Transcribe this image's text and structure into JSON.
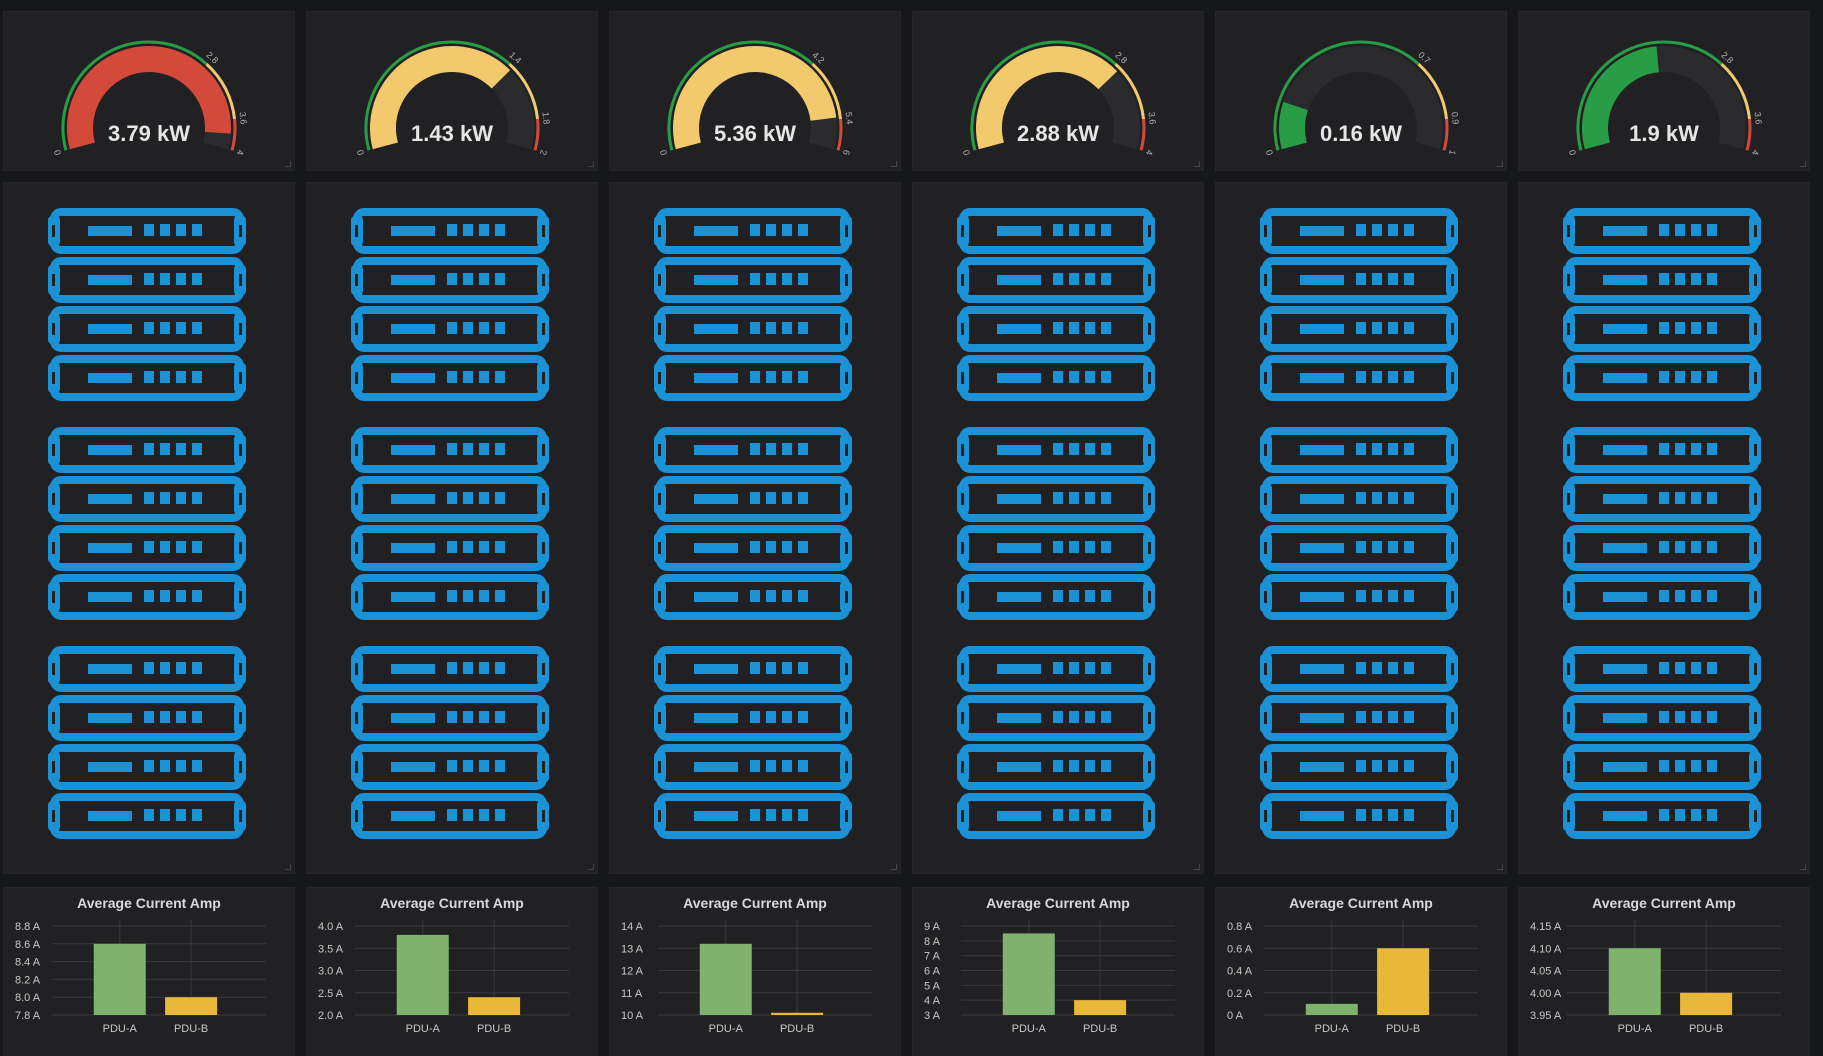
{
  "colors": {
    "background": "#161719",
    "panel": "#212124",
    "green": "#299c46",
    "yellow": "#f2c96d",
    "red": "#d44a3a",
    "server_blue": "#1b91d6",
    "bar_pdu_a": "#7eb26d",
    "bar_pdu_b": "#eab839",
    "grid": "#3a3a3d"
  },
  "icons": {
    "rack": "server-rack-icon"
  },
  "racks": [
    {
      "gauge": {
        "value": 3.79,
        "display": "3.79 kW",
        "min": 0,
        "max": 4,
        "thresholds": [
          2.8,
          3.6
        ],
        "threshold_labels": [
          "2.8",
          "3.6"
        ],
        "min_label": "0",
        "max_label": "4",
        "fill": "#d44a3a"
      },
      "chart": {
        "title": "Average Current Amp",
        "type": "bar",
        "categories": [
          "PDU-A",
          "PDU-B"
        ],
        "values": [
          8.6,
          8.0
        ],
        "ylim": [
          7.8,
          8.8
        ],
        "yticks": [
          "7.8 A",
          "8.0 A",
          "8.2 A",
          "8.4 A",
          "8.6 A",
          "8.8 A"
        ]
      }
    },
    {
      "gauge": {
        "value": 1.43,
        "display": "1.43 kW",
        "min": 0,
        "max": 2,
        "thresholds": [
          1.4,
          1.8
        ],
        "threshold_labels": [
          "1.4",
          "1.8"
        ],
        "min_label": "0",
        "max_label": "2",
        "fill": "#f2c96d"
      },
      "chart": {
        "title": "Average Current Amp",
        "type": "bar",
        "categories": [
          "PDU-A",
          "PDU-B"
        ],
        "values": [
          3.8,
          2.4
        ],
        "ylim": [
          2.0,
          4.0
        ],
        "yticks": [
          "2.0 A",
          "2.5 A",
          "3.0 A",
          "3.5 A",
          "4.0 A"
        ]
      }
    },
    {
      "gauge": {
        "value": 5.36,
        "display": "5.36 kW",
        "min": 0,
        "max": 6,
        "thresholds": [
          4.2,
          5.4
        ],
        "threshold_labels": [
          "4.2",
          "5.4"
        ],
        "min_label": "0",
        "max_label": "6",
        "fill": "#f2c96d"
      },
      "chart": {
        "title": "Average Current Amp",
        "type": "bar",
        "categories": [
          "PDU-A",
          "PDU-B"
        ],
        "values": [
          13.2,
          10.1
        ],
        "ylim": [
          10,
          14
        ],
        "yticks": [
          "10 A",
          "11 A",
          "12 A",
          "13 A",
          "14 A"
        ]
      }
    },
    {
      "gauge": {
        "value": 2.88,
        "display": "2.88 kW",
        "min": 0,
        "max": 4,
        "thresholds": [
          2.8,
          3.6
        ],
        "threshold_labels": [
          "2.8",
          "3.6"
        ],
        "min_label": "0",
        "max_label": "4",
        "fill": "#f2c96d"
      },
      "chart": {
        "title": "Average Current Amp",
        "type": "bar",
        "categories": [
          "PDU-A",
          "PDU-B"
        ],
        "values": [
          8.5,
          4.0
        ],
        "ylim": [
          3,
          9
        ],
        "yticks": [
          "3 A",
          "4 A",
          "5 A",
          "6 A",
          "7 A",
          "8 A",
          "9 A"
        ]
      }
    },
    {
      "gauge": {
        "value": 0.16,
        "display": "0.16 kW",
        "min": 0,
        "max": 1,
        "thresholds": [
          0.7,
          0.9
        ],
        "threshold_labels": [
          "0.7",
          "0.9"
        ],
        "min_label": "0",
        "max_label": "1",
        "fill": "#299c46"
      },
      "chart": {
        "title": "Average Current Amp",
        "type": "bar",
        "categories": [
          "PDU-A",
          "PDU-B"
        ],
        "values": [
          0.1,
          0.6
        ],
        "ylim": [
          0,
          0.8
        ],
        "yticks": [
          "0 A",
          "0.2 A",
          "0.4 A",
          "0.6 A",
          "0.8 A"
        ]
      }
    },
    {
      "gauge": {
        "value": 1.9,
        "display": "1.9 kW",
        "min": 0,
        "max": 4,
        "thresholds": [
          2.8,
          3.6
        ],
        "threshold_labels": [
          "2.8",
          "3.6"
        ],
        "min_label": "0",
        "max_label": "4",
        "fill": "#299c46"
      },
      "chart": {
        "title": "Average Current Amp",
        "type": "bar",
        "categories": [
          "PDU-A",
          "PDU-B"
        ],
        "values": [
          4.1,
          4.0
        ],
        "ylim": [
          3.95,
          4.15
        ],
        "yticks": [
          "3.95 A",
          "4.00 A",
          "4.05 A",
          "4.10 A",
          "4.15 A"
        ]
      }
    }
  ],
  "chart_data": [
    {
      "type": "bar",
      "title": "Average Current Amp",
      "categories": [
        "PDU-A",
        "PDU-B"
      ],
      "values": [
        8.6,
        8.0
      ],
      "ylim": [
        7.8,
        8.8
      ]
    },
    {
      "type": "bar",
      "title": "Average Current Amp",
      "categories": [
        "PDU-A",
        "PDU-B"
      ],
      "values": [
        3.8,
        2.4
      ],
      "ylim": [
        2.0,
        4.0
      ]
    },
    {
      "type": "bar",
      "title": "Average Current Amp",
      "categories": [
        "PDU-A",
        "PDU-B"
      ],
      "values": [
        13.2,
        10.1
      ],
      "ylim": [
        10,
        14
      ]
    },
    {
      "type": "bar",
      "title": "Average Current Amp",
      "categories": [
        "PDU-A",
        "PDU-B"
      ],
      "values": [
        8.5,
        4.0
      ],
      "ylim": [
        3,
        9
      ]
    },
    {
      "type": "bar",
      "title": "Average Current Amp",
      "categories": [
        "PDU-A",
        "PDU-B"
      ],
      "values": [
        0.1,
        0.6
      ],
      "ylim": [
        0,
        0.8
      ]
    },
    {
      "type": "bar",
      "title": "Average Current Amp",
      "categories": [
        "PDU-A",
        "PDU-B"
      ],
      "values": [
        4.1,
        4.0
      ],
      "ylim": [
        3.95,
        4.15
      ]
    }
  ]
}
